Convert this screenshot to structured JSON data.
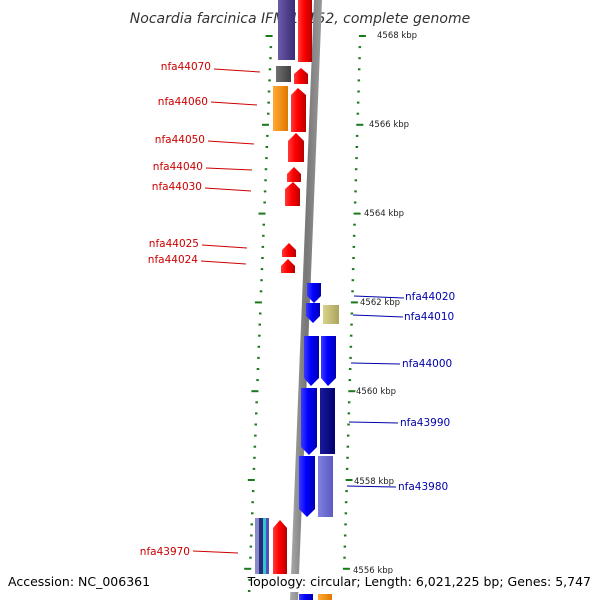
{
  "header": {
    "title": "Nocardia farcinica IFM 10152, complete genome"
  },
  "footer": {
    "accession": "Accession: NC_006361",
    "topology": "Topology: circular; Length: 6,021,225 bp; Genes: 5,747"
  },
  "colors": {
    "left_label": "#cc0000",
    "right_label": "#0000aa",
    "forward_gene": "#ff0000",
    "reverse_gene": "#0000ff",
    "tick": "#1a7a1a",
    "axis": "#888888"
  },
  "scale_labels": [
    "4568 kbp",
    "4566 kbp",
    "4564 kbp",
    "4562 kbp",
    "4560 kbp",
    "4558 kbp",
    "4556 kbp"
  ],
  "left_genes": [
    {
      "label": "nfa44070"
    },
    {
      "label": "nfa44060"
    },
    {
      "label": "nfa44050"
    },
    {
      "label": "nfa44040"
    },
    {
      "label": "nfa44030"
    },
    {
      "label": "nfa44025"
    },
    {
      "label": "nfa44024"
    },
    {
      "label": "nfa43970"
    }
  ],
  "right_genes": [
    {
      "label": "nfa44020"
    },
    {
      "label": "nfa44010"
    },
    {
      "label": "nfa44000"
    },
    {
      "label": "nfa43990"
    },
    {
      "label": "nfa43980"
    }
  ]
}
